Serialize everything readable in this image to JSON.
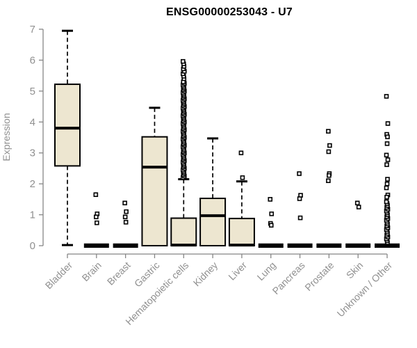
{
  "chart_data": {
    "type": "boxplot",
    "title": "ENSG00000253043 - U7",
    "ylabel": "Expression",
    "xlabel": "",
    "ylim": [
      0,
      7
    ],
    "yticks": [
      0,
      1,
      2,
      3,
      4,
      5,
      6,
      7
    ],
    "grid": false,
    "legend": null,
    "colors": {
      "box_fill": "#EDE6D0",
      "box_stroke": "#000000",
      "axis": "#858585",
      "tick_text": "#909090",
      "title_text": "#000000"
    },
    "categories": [
      "Bladder",
      "Brain",
      "Breast",
      "Gastric",
      "Hematopoietic cells",
      "Kidney",
      "Liver",
      "Lung",
      "Pancreas",
      "Prostate",
      "Skin",
      "Unknown / Other"
    ],
    "series": [
      {
        "category": "Bladder",
        "whisker_low": 0.02,
        "q1": 2.58,
        "median": 3.8,
        "q3": 5.22,
        "whisker_high": 6.95,
        "outliers": []
      },
      {
        "category": "Brain",
        "whisker_low": 0,
        "q1": 0,
        "median": 0.02,
        "q3": 0.05,
        "whisker_high": 0.05,
        "outliers": [
          1.65,
          1.03,
          0.93,
          0.74
        ]
      },
      {
        "category": "Breast",
        "whisker_low": 0,
        "q1": 0,
        "median": 0.02,
        "q3": 0.05,
        "whisker_high": 0.05,
        "outliers": [
          1.38,
          1.1,
          0.93,
          0.76
        ]
      },
      {
        "category": "Gastric",
        "whisker_low": 0,
        "q1": 0,
        "median": 2.54,
        "q3": 3.52,
        "whisker_high": 4.46,
        "outliers": []
      },
      {
        "category": "Hematopoietic cells",
        "whisker_low": 0,
        "q1": 0,
        "median": 0.02,
        "q3": 0.89,
        "whisker_high": 2.15,
        "outliers": [],
        "outlier_runs": [
          {
            "from": 2.2,
            "to": 5.3,
            "step": 0.05
          },
          {
            "from": 5.4,
            "to": 5.98,
            "step": 0.08
          }
        ]
      },
      {
        "category": "Kidney",
        "whisker_low": 0,
        "q1": 0,
        "median": 0.97,
        "q3": 1.53,
        "whisker_high": 3.47,
        "outliers": []
      },
      {
        "category": "Liver",
        "whisker_low": 0,
        "q1": 0,
        "median": 0.02,
        "q3": 0.88,
        "whisker_high": 2.08,
        "outliers": [
          3.0,
          2.2
        ]
      },
      {
        "category": "Lung",
        "whisker_low": 0,
        "q1": 0,
        "median": 0.02,
        "q3": 0.05,
        "whisker_high": 0.05,
        "outliers": [
          1.5,
          1.03,
          0.72,
          0.66
        ]
      },
      {
        "category": "Pancreas",
        "whisker_low": 0,
        "q1": 0,
        "median": 0.02,
        "q3": 0.05,
        "whisker_high": 0.05,
        "outliers": [
          2.33,
          1.63,
          1.52,
          0.9
        ]
      },
      {
        "category": "Prostate",
        "whisker_low": 0,
        "q1": 0,
        "median": 0.02,
        "q3": 0.05,
        "whisker_high": 0.05,
        "outliers": [
          3.7,
          3.24,
          3.04,
          2.33,
          2.27,
          2.1
        ]
      },
      {
        "category": "Skin",
        "whisker_low": 0,
        "q1": 0,
        "median": 0.02,
        "q3": 0.05,
        "whisker_high": 0.05,
        "outliers": [
          1.38,
          1.25
        ]
      },
      {
        "category": "Unknown / Other",
        "whisker_low": 0,
        "q1": 0,
        "median": 0.02,
        "q3": 0.05,
        "whisker_high": 0.05,
        "outliers": [
          4.83,
          3.95,
          3.6,
          3.52,
          3.3,
          2.93,
          2.78,
          2.62,
          2.15,
          2.0,
          1.87,
          1.64,
          1.57
        ],
        "outlier_runs": [
          {
            "from": 0.1,
            "to": 1.42,
            "step": 0.06
          }
        ]
      }
    ]
  }
}
